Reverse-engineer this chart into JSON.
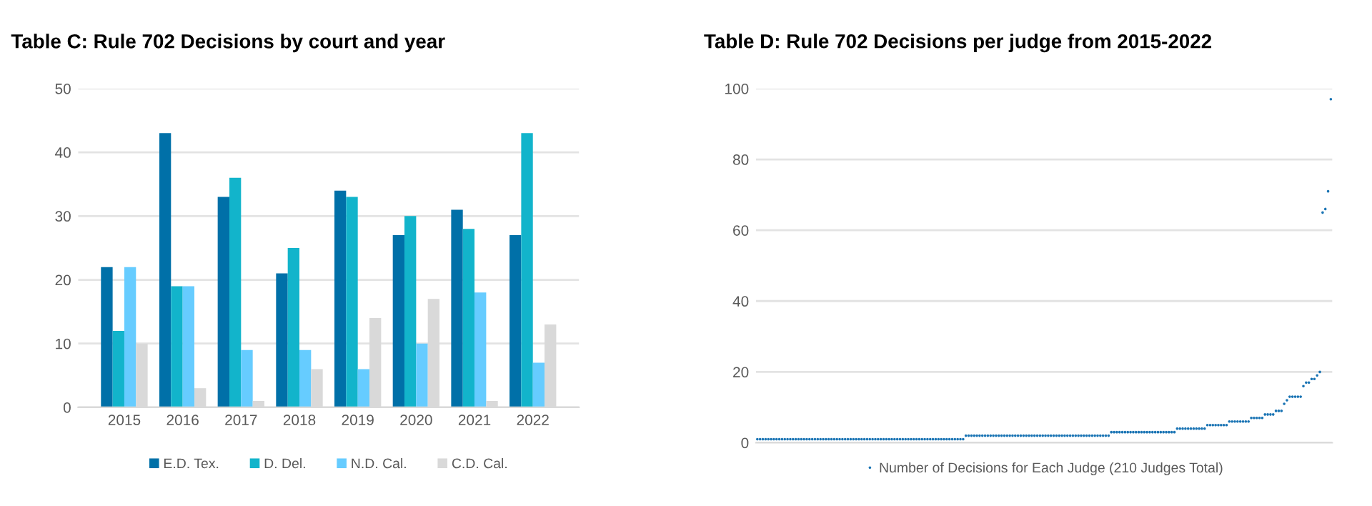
{
  "chart_data": [
    {
      "type": "bar",
      "title": "Table C: Rule 702 Decisions by court and year",
      "categories": [
        "2015",
        "2016",
        "2017",
        "2018",
        "2019",
        "2020",
        "2021",
        "2022"
      ],
      "series": [
        {
          "name": "E.D. Tex.",
          "color": "#0070a8",
          "values": [
            22,
            43,
            33,
            21,
            34,
            27,
            31,
            27
          ]
        },
        {
          "name": "D. Del.",
          "color": "#12b4cb",
          "values": [
            12,
            19,
            36,
            25,
            33,
            30,
            28,
            43
          ]
        },
        {
          "name": "N.D. Cal.",
          "color": "#66ccff",
          "values": [
            22,
            19,
            9,
            9,
            6,
            10,
            18,
            7
          ]
        },
        {
          "name": "C.D. Cal.",
          "color": "#d9d9d9",
          "values": [
            10,
            3,
            1,
            6,
            14,
            17,
            1,
            13
          ]
        }
      ],
      "ylim": [
        0,
        50
      ],
      "yticks": [
        0,
        10,
        20,
        30,
        40,
        50
      ],
      "grid": "y",
      "legend": "bottom"
    },
    {
      "type": "scatter",
      "title": "Table D: Rule 702 Decisions per judge from 2015-2022",
      "categories": [
        null,
        null,
        null,
        null,
        null,
        null,
        null,
        null,
        null,
        null,
        null,
        null,
        null,
        null,
        null,
        null,
        null,
        null,
        null,
        null,
        null,
        null,
        null,
        null,
        null,
        null,
        null,
        null,
        null,
        null,
        null,
        null,
        null,
        null,
        null,
        null,
        null,
        null,
        null,
        null,
        null,
        null,
        null,
        null,
        null,
        null,
        null,
        null,
        null,
        null,
        null,
        null,
        null,
        null,
        null,
        null,
        null,
        null,
        null,
        null,
        null,
        null,
        null,
        null,
        null,
        null,
        null,
        null,
        null,
        null,
        null,
        null,
        null,
        null,
        null,
        null,
        null,
        null,
        null,
        null,
        null,
        null,
        null,
        null,
        null,
        null,
        null,
        null,
        null,
        null,
        null,
        null,
        null,
        null,
        null,
        null,
        null,
        null,
        null,
        null,
        null,
        null,
        null,
        null,
        null,
        null,
        null,
        null,
        null,
        null,
        null,
        null,
        null,
        null,
        null,
        null,
        null,
        null,
        null,
        null,
        null,
        null,
        null,
        null,
        null,
        null,
        null,
        null,
        null,
        null,
        null,
        null,
        null,
        null,
        null,
        null,
        null,
        null,
        null,
        null,
        null,
        null,
        null,
        null,
        null,
        null,
        null,
        null,
        null,
        null,
        null,
        null,
        null,
        null,
        null,
        null,
        null,
        null,
        null,
        null,
        null,
        null,
        null,
        null,
        null,
        null,
        null,
        null,
        null,
        null,
        null,
        null,
        null,
        null,
        null,
        null,
        null,
        null,
        null,
        null,
        null,
        null,
        null,
        null,
        null,
        null,
        null,
        null,
        null,
        null,
        null,
        null,
        null,
        null,
        null,
        null,
        null,
        null,
        null,
        null,
        null,
        null,
        null,
        null,
        null,
        null,
        null,
        null,
        null,
        null
      ],
      "series": [
        {
          "name": "Number of Decisions for Each Judge (210 Judges Total)",
          "color": "#1a74b4",
          "values": [
            1,
            1,
            1,
            1,
            1,
            1,
            1,
            1,
            1,
            1,
            1,
            1,
            1,
            1,
            1,
            1,
            1,
            1,
            1,
            1,
            1,
            1,
            1,
            1,
            1,
            1,
            1,
            1,
            1,
            1,
            1,
            1,
            1,
            1,
            1,
            1,
            1,
            1,
            1,
            1,
            1,
            1,
            1,
            1,
            1,
            1,
            1,
            1,
            1,
            1,
            1,
            1,
            1,
            1,
            1,
            1,
            1,
            1,
            1,
            1,
            1,
            1,
            1,
            1,
            1,
            1,
            1,
            1,
            1,
            1,
            1,
            1,
            1,
            1,
            1,
            1,
            2,
            2,
            2,
            2,
            2,
            2,
            2,
            2,
            2,
            2,
            2,
            2,
            2,
            2,
            2,
            2,
            2,
            2,
            2,
            2,
            2,
            2,
            2,
            2,
            2,
            2,
            2,
            2,
            2,
            2,
            2,
            2,
            2,
            2,
            2,
            2,
            2,
            2,
            2,
            2,
            2,
            2,
            2,
            2,
            2,
            2,
            2,
            2,
            2,
            2,
            2,
            2,
            2,
            3,
            3,
            3,
            3,
            3,
            3,
            3,
            3,
            3,
            3,
            3,
            3,
            3,
            3,
            3,
            3,
            3,
            3,
            3,
            3,
            3,
            3,
            3,
            3,
            4,
            4,
            4,
            4,
            4,
            4,
            4,
            4,
            4,
            4,
            4,
            5,
            5,
            5,
            5,
            5,
            5,
            5,
            5,
            6,
            6,
            6,
            6,
            6,
            6,
            6,
            6,
            7,
            7,
            7,
            7,
            7,
            8,
            8,
            8,
            8,
            9,
            9,
            9,
            11,
            12,
            13,
            13,
            13,
            13,
            13,
            16,
            17,
            17,
            18,
            18,
            19,
            20,
            65,
            66,
            71,
            97
          ]
        }
      ],
      "ylim": [
        0,
        100
      ],
      "yticks": [
        0,
        20,
        40,
        60,
        80,
        100
      ],
      "grid": "y",
      "legend": "bottom",
      "marker": "circle",
      "tick_labels": "y"
    }
  ]
}
